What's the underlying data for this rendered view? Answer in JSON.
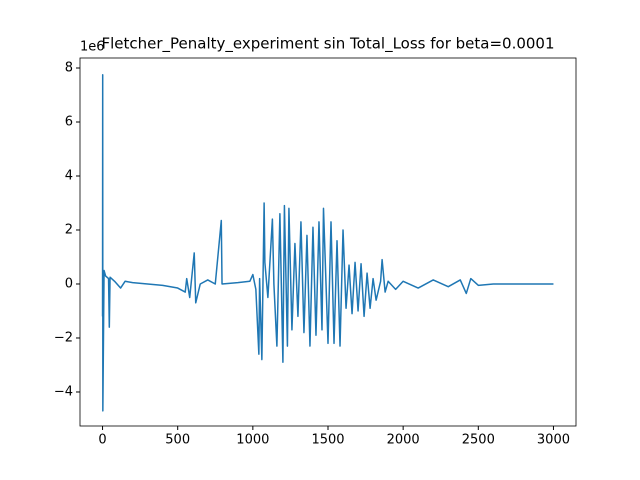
{
  "chart_data": {
    "type": "line",
    "title": "Fletcher_Penalty_experiment sin Total_Loss for beta=0.0001",
    "y_offset_label": "1e6",
    "x": [
      0,
      1,
      2,
      10,
      20,
      40,
      45,
      50,
      80,
      120,
      150,
      200,
      300,
      400,
      500,
      550,
      560,
      580,
      610,
      620,
      650,
      700,
      750,
      790,
      795,
      900,
      980,
      1000,
      1020,
      1040,
      1045,
      1060,
      1075,
      1080,
      1100,
      1130,
      1140,
      1160,
      1180,
      1200,
      1210,
      1230,
      1240,
      1260,
      1280,
      1300,
      1320,
      1340,
      1360,
      1380,
      1400,
      1420,
      1440,
      1460,
      1470,
      1500,
      1520,
      1540,
      1560,
      1580,
      1600,
      1620,
      1640,
      1660,
      1680,
      1700,
      1720,
      1740,
      1760,
      1780,
      1800,
      1820,
      1850,
      1860,
      1880,
      1900,
      1950,
      2000,
      2100,
      2200,
      2300,
      2380,
      2420,
      2450,
      2500,
      2600,
      3000
    ],
    "series": [
      {
        "color": "#1f77b4",
        "values": [
          -1.2,
          7.75,
          -4.7,
          0.5,
          0.3,
          0.2,
          -1.6,
          0.25,
          0.1,
          -0.15,
          0.1,
          0.05,
          0.0,
          -0.05,
          -0.15,
          -0.3,
          0.2,
          -0.5,
          1.15,
          -0.7,
          0.0,
          0.15,
          0.0,
          2.35,
          0.0,
          0.05,
          0.1,
          0.35,
          -0.2,
          -2.6,
          0.2,
          -2.8,
          3.0,
          0.8,
          -0.5,
          2.4,
          0.0,
          -2.3,
          2.6,
          -2.9,
          2.9,
          -2.3,
          2.8,
          -1.7,
          1.5,
          -1.2,
          2.3,
          -1.8,
          1.8,
          -2.3,
          2.1,
          -1.9,
          2.3,
          -1.7,
          2.8,
          -2.2,
          2.3,
          -2.2,
          1.6,
          -2.3,
          2.0,
          -0.9,
          0.7,
          -1.1,
          0.8,
          -1.0,
          0.75,
          -1.2,
          0.4,
          -0.9,
          0.2,
          -0.6,
          0.1,
          0.9,
          -0.3,
          0.1,
          -0.2,
          0.1,
          -0.15,
          0.15,
          -0.1,
          0.15,
          -0.35,
          0.2,
          -0.05,
          0.0,
          0.0
        ]
      }
    ],
    "xlim": [
      -150,
      3150
    ],
    "ylim": [
      -5.26,
      8.37
    ],
    "xticks": [
      0,
      500,
      1000,
      1500,
      2000,
      2500,
      3000
    ],
    "yticks": [
      {
        "value": -4,
        "label": "−4"
      },
      {
        "value": -2,
        "label": "−2"
      },
      0,
      2,
      4,
      6,
      8
    ]
  }
}
